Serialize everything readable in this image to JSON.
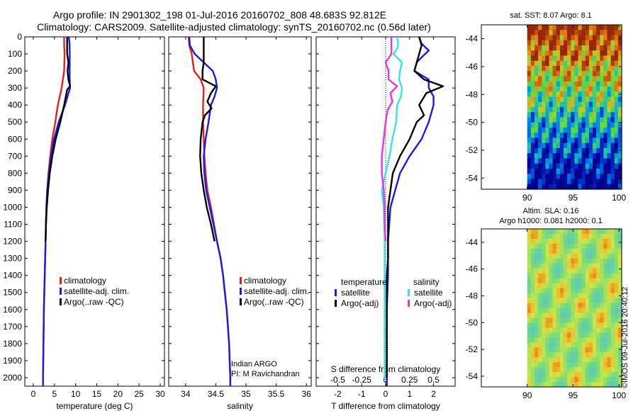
{
  "header": {
    "line1": "Argo profile: IN 2901302_198 01-Jul-2016 20160702_808 48.683S 92.812E",
    "line2": "Climatology: CARS2009. Satellite-adjusted climatology: synTS_20160702.nc (0.56d later)"
  },
  "colors": {
    "climatology": "#e61e1e",
    "satellite": "#1a1ae6",
    "argo": "#000000",
    "sat_salinity": "#33e6e6",
    "argo_salinity_diff": "#e633e6"
  },
  "chart_data": [
    {
      "type": "line",
      "name": "temperature",
      "xlabel": "temperature (deg C)",
      "ylabel": "",
      "xlim": [
        -2,
        31
      ],
      "ylim": [
        2050,
        0
      ],
      "xticks": [
        0,
        5,
        10,
        15,
        20,
        25,
        30
      ],
      "yticks": [
        0,
        100,
        200,
        300,
        400,
        500,
        600,
        700,
        800,
        900,
        1000,
        1100,
        1200,
        1300,
        1400,
        1500,
        1600,
        1700,
        1800,
        1900,
        2000
      ],
      "legend": [
        "climatology",
        "satellite-adj. clim.",
        "Argo(..raw -QC)"
      ],
      "series": [
        {
          "name": "climatology",
          "color": "#e61e1e",
          "points": [
            [
              7.3,
              0
            ],
            [
              7.3,
              50
            ],
            [
              7.4,
              100
            ],
            [
              7.3,
              200
            ],
            [
              6.7,
              300
            ],
            [
              5.8,
              400
            ],
            [
              5.2,
              500
            ],
            [
              4.5,
              600
            ],
            [
              4.0,
              700
            ],
            [
              3.6,
              800
            ],
            [
              3.3,
              900
            ],
            [
              3.1,
              1000
            ],
            [
              2.9,
              1200
            ],
            [
              2.7,
              1400
            ],
            [
              2.5,
              1600
            ],
            [
              2.4,
              1800
            ],
            [
              2.3,
              2000
            ],
            [
              2.3,
              2050
            ]
          ]
        },
        {
          "name": "satellite-adj. clim.",
          "color": "#1a1ae6",
          "points": [
            [
              8.4,
              0
            ],
            [
              8.6,
              50
            ],
            [
              8.6,
              100
            ],
            [
              8.6,
              200
            ],
            [
              8.6,
              250
            ],
            [
              8.7,
              300
            ],
            [
              7.5,
              400
            ],
            [
              6.0,
              500
            ],
            [
              4.9,
              600
            ],
            [
              4.2,
              700
            ],
            [
              3.7,
              800
            ],
            [
              3.3,
              900
            ],
            [
              3.1,
              1000
            ],
            [
              2.9,
              1200
            ],
            [
              2.7,
              1400
            ],
            [
              2.5,
              1600
            ],
            [
              2.4,
              1800
            ],
            [
              2.3,
              2000
            ],
            [
              2.3,
              2050
            ]
          ]
        },
        {
          "name": "Argo(..raw -QC)",
          "color": "#000000",
          "points": [
            [
              8.0,
              0
            ],
            [
              8.0,
              50
            ],
            [
              8.0,
              100
            ],
            [
              8.3,
              150
            ],
            [
              8.1,
              200
            ],
            [
              8.3,
              250
            ],
            [
              8.7,
              290
            ],
            [
              8.0,
              310
            ],
            [
              7.3,
              400
            ],
            [
              6.4,
              500
            ],
            [
              5.3,
              600
            ],
            [
              4.5,
              700
            ],
            [
              3.9,
              800
            ],
            [
              3.5,
              900
            ],
            [
              3.2,
              1000
            ],
            [
              3.0,
              1100
            ],
            [
              2.9,
              1200
            ]
          ]
        }
      ]
    },
    {
      "type": "line",
      "name": "salinity",
      "xlabel": "salinity",
      "ylabel": "",
      "xlim": [
        33.72,
        36.08
      ],
      "ylim": [
        2050,
        0
      ],
      "xticks": [
        34,
        34.5,
        35,
        35.5,
        36
      ],
      "legend": [
        "climatology",
        "satellite-adj. clim.",
        "Argo(..raw -QC)"
      ],
      "annotation": [
        "Indian ARGO",
        "PI: M Ravichandran"
      ],
      "series": [
        {
          "name": "climatology",
          "color": "#e61e1e",
          "points": [
            [
              34.05,
              0
            ],
            [
              34.06,
              50
            ],
            [
              34.1,
              100
            ],
            [
              34.14,
              200
            ],
            [
              34.25,
              250
            ],
            [
              34.3,
              300
            ],
            [
              34.29,
              400
            ],
            [
              34.29,
              500
            ],
            [
              34.3,
              600
            ],
            [
              34.31,
              700
            ],
            [
              34.33,
              800
            ],
            [
              34.36,
              900
            ],
            [
              34.42,
              1000
            ],
            [
              34.47,
              1100
            ],
            [
              34.52,
              1200
            ],
            [
              34.58,
              1300
            ],
            [
              34.62,
              1400
            ],
            [
              34.65,
              1500
            ],
            [
              34.68,
              1600
            ],
            [
              34.7,
              1700
            ],
            [
              34.72,
              1800
            ],
            [
              34.73,
              1900
            ],
            [
              34.74,
              2000
            ],
            [
              34.74,
              2050
            ]
          ]
        },
        {
          "name": "satellite-adj. clim.",
          "color": "#1a1ae6",
          "points": [
            [
              34.06,
              0
            ],
            [
              34.07,
              50
            ],
            [
              34.15,
              100
            ],
            [
              34.3,
              150
            ],
            [
              34.45,
              200
            ],
            [
              34.5,
              250
            ],
            [
              34.52,
              300
            ],
            [
              34.48,
              350
            ],
            [
              34.42,
              400
            ],
            [
              34.38,
              500
            ],
            [
              34.33,
              600
            ],
            [
              34.3,
              700
            ],
            [
              34.31,
              800
            ],
            [
              34.34,
              900
            ],
            [
              34.4,
              1000
            ],
            [
              34.46,
              1100
            ],
            [
              34.52,
              1200
            ],
            [
              34.58,
              1300
            ],
            [
              34.62,
              1400
            ],
            [
              34.65,
              1500
            ],
            [
              34.68,
              1600
            ],
            [
              34.7,
              1700
            ],
            [
              34.72,
              1800
            ],
            [
              34.73,
              1900
            ],
            [
              34.74,
              2000
            ],
            [
              34.74,
              2050
            ]
          ]
        },
        {
          "name": "Argo(..raw -QC)",
          "color": "#000000",
          "points": [
            [
              34.3,
              0
            ],
            [
              34.3,
              60
            ],
            [
              34.3,
              100
            ],
            [
              34.3,
              150
            ],
            [
              34.28,
              200
            ],
            [
              34.28,
              250
            ],
            [
              34.5,
              290
            ],
            [
              34.42,
              330
            ],
            [
              34.36,
              380
            ],
            [
              34.43,
              420
            ],
            [
              34.32,
              460
            ],
            [
              34.28,
              500
            ],
            [
              34.25,
              600
            ],
            [
              34.24,
              700
            ],
            [
              34.26,
              800
            ],
            [
              34.3,
              900
            ],
            [
              34.35,
              1000
            ],
            [
              34.42,
              1100
            ],
            [
              34.48,
              1200
            ]
          ]
        }
      ]
    },
    {
      "type": "line",
      "name": "difference",
      "xlabel": "T difference from climatology",
      "xlabel_top": "S difference from climatology",
      "xlim": [
        -2.9,
        2.9
      ],
      "ylim": [
        2050,
        0
      ],
      "xticks": [
        -2,
        -1,
        0,
        1,
        2
      ],
      "xticks_s": [
        "-0.5",
        "-0.25",
        "0",
        "0.25",
        "0.5"
      ],
      "legend_groups": {
        "temperature": [
          "satellite",
          "Argo(-adj)"
        ],
        "salinity": [
          "satellite",
          "Argo(-adj)"
        ]
      },
      "series": [
        {
          "name": "T satellite",
          "color": "#1a1ae6",
          "points": [
            [
              1.4,
              0
            ],
            [
              1.5,
              40
            ],
            [
              1.8,
              80
            ],
            [
              1.5,
              120
            ],
            [
              1.3,
              150
            ],
            [
              1.2,
              200
            ],
            [
              1.8,
              250
            ],
            [
              1.8,
              300
            ],
            [
              2.0,
              350
            ],
            [
              2.0,
              400
            ],
            [
              1.9,
              450
            ],
            [
              1.8,
              500
            ],
            [
              1.5,
              600
            ],
            [
              1.0,
              700
            ],
            [
              0.6,
              800
            ],
            [
              0.4,
              900
            ],
            [
              0.2,
              1000
            ],
            [
              0.1,
              1200
            ],
            [
              0.1,
              1400
            ],
            [
              0.05,
              1600
            ],
            [
              0.05,
              1800
            ],
            [
              0.05,
              2000
            ],
            [
              0.05,
              2050
            ]
          ]
        },
        {
          "name": "T Argo(-adj)",
          "color": "#000000",
          "points": [
            [
              1.4,
              0
            ],
            [
              1.5,
              50
            ],
            [
              1.4,
              100
            ],
            [
              1.3,
              150
            ],
            [
              1.2,
              200
            ],
            [
              1.6,
              250
            ],
            [
              2.4,
              290
            ],
            [
              1.7,
              330
            ],
            [
              1.4,
              400
            ],
            [
              1.6,
              460
            ],
            [
              1.3,
              500
            ],
            [
              1.0,
              600
            ],
            [
              0.6,
              700
            ],
            [
              0.3,
              800
            ],
            [
              0.2,
              900
            ],
            [
              0.1,
              1000
            ],
            [
              0.1,
              1100
            ],
            [
              0.1,
              1200
            ],
            [
              0.1,
              1300
            ],
            [
              0.05,
              1400
            ],
            [
              0.05,
              1700
            ],
            [
              0.05,
              2000
            ]
          ]
        },
        {
          "name": "S satellite",
          "color": "#33e6e6",
          "points": [
            [
              0.12,
              0
            ],
            [
              0.13,
              40
            ],
            [
              0.12,
              70
            ],
            [
              0.08,
              100
            ],
            [
              0.17,
              150
            ],
            [
              0.15,
              200
            ],
            [
              0.14,
              250
            ],
            [
              0.17,
              300
            ],
            [
              0.16,
              350
            ],
            [
              0.12,
              400
            ],
            [
              0.11,
              500
            ],
            [
              0.07,
              600
            ],
            [
              0.04,
              700
            ],
            [
              0.0,
              800
            ],
            [
              -0.04,
              900
            ],
            [
              -0.02,
              1000
            ],
            [
              -0.01,
              1200
            ],
            [
              -0.01,
              1400
            ],
            [
              -0.01,
              1600
            ],
            [
              -0.01,
              1800
            ],
            [
              -0.01,
              2000
            ]
          ]
        },
        {
          "name": "S Argo(-adj)",
          "color": "#e633e6",
          "points": [
            [
              0.06,
              0
            ],
            [
              0.06,
              40
            ],
            [
              0.06,
              80
            ],
            [
              0.06,
              100
            ],
            [
              0.0,
              150
            ],
            [
              0.03,
              200
            ],
            [
              0.03,
              250
            ],
            [
              0.12,
              290
            ],
            [
              0.05,
              330
            ],
            [
              0.07,
              380
            ],
            [
              0.02,
              430
            ],
            [
              0.0,
              500
            ],
            [
              -0.02,
              600
            ],
            [
              -0.04,
              700
            ],
            [
              -0.04,
              800
            ],
            [
              -0.02,
              900
            ],
            [
              -0.01,
              1000
            ],
            [
              -0.01,
              1100
            ],
            [
              0.0,
              1200
            ]
          ]
        }
      ]
    },
    {
      "type": "heatmap",
      "name": "sst",
      "title": "sat. SST: 8.07 Argo: 8.1",
      "xlim": [
        85,
        100.3
      ],
      "ylim": [
        -54.8,
        -43
      ],
      "xticks": [
        90,
        95,
        100
      ],
      "yticks": [
        -44,
        -46,
        -48,
        -50,
        -52,
        -54
      ],
      "data_lon_range": [
        90,
        100.3
      ],
      "argo_position": [
        92.812,
        -48.683
      ],
      "value_range": [
        2,
        11
      ]
    },
    {
      "type": "heatmap",
      "name": "sla",
      "title": "Altim. SLA: 0.16",
      "subtitle": "Argo h1000: 0.081 h2000: 0.1",
      "xlim": [
        85,
        100.3
      ],
      "ylim": [
        -54.8,
        -43
      ],
      "xticks": [
        90,
        95,
        100
      ],
      "yticks": [
        -44,
        -46,
        -48,
        -50,
        -52,
        -54
      ],
      "data_lon_range": [
        90,
        100.3
      ],
      "argo_position": [
        92.812,
        -48.683
      ]
    }
  ],
  "footer": {
    "stamp": "©IMOS 09-Jul-2016 20:40:12"
  }
}
